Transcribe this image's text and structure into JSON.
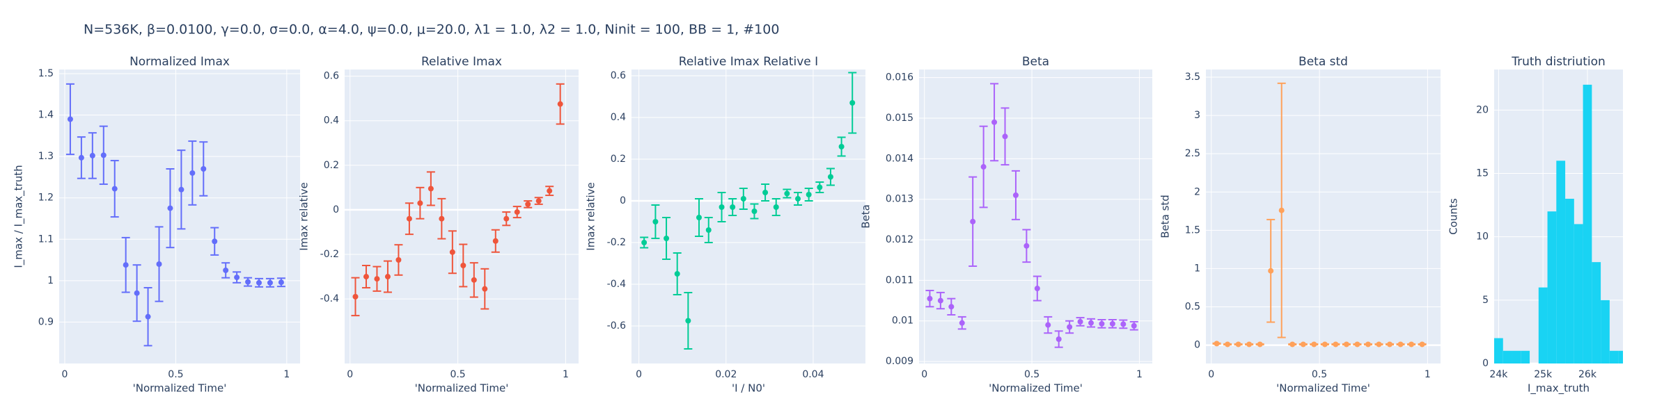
{
  "title": "N=536K, β=0.0100, γ=0.0, σ=0.0,  α=4.0, ψ=0.0, μ=20.0, λ1 = 1.0, λ2 = 1.0, Ninit = 100, BB = 1, #100",
  "chart_data": [
    {
      "type": "scatter",
      "title": "Normalized Imax",
      "x_label": "'Normalized Time'",
      "y_label": "I_max / I_max_truth",
      "color": "#636efa",
      "grid": true,
      "x": [
        0.025,
        0.075,
        0.125,
        0.175,
        0.225,
        0.275,
        0.325,
        0.375,
        0.425,
        0.475,
        0.525,
        0.575,
        0.625,
        0.675,
        0.725,
        0.775,
        0.825,
        0.875,
        0.925,
        0.975
      ],
      "values": [
        1.39,
        1.297,
        1.302,
        1.303,
        1.222,
        1.038,
        0.97,
        0.913,
        1.04,
        1.175,
        1.22,
        1.26,
        1.27,
        1.095,
        1.025,
        1.008,
        0.997,
        0.995,
        0.995,
        0.996
      ],
      "errors": [
        0.085,
        0.05,
        0.055,
        0.07,
        0.068,
        0.066,
        0.068,
        0.07,
        0.09,
        0.095,
        0.095,
        0.077,
        0.065,
        0.033,
        0.018,
        0.013,
        0.01,
        0.01,
        0.01,
        0.01
      ],
      "xlim": [
        -0.025,
        1.06
      ],
      "ylim": [
        0.8,
        1.51
      ],
      "xticks": [
        0,
        0.5,
        1
      ],
      "yticks": [
        0.9,
        1,
        1.1,
        1.2,
        1.3,
        1.4,
        1.5
      ]
    },
    {
      "type": "scatter",
      "title": "Relative Imax",
      "x_label": "'Normalized Time'",
      "y_label": "Imax relative",
      "color": "#EF553B",
      "grid": true,
      "x": [
        0.025,
        0.075,
        0.125,
        0.175,
        0.225,
        0.275,
        0.325,
        0.375,
        0.425,
        0.475,
        0.525,
        0.575,
        0.625,
        0.675,
        0.725,
        0.775,
        0.825,
        0.875,
        0.925,
        0.975
      ],
      "values": [
        -0.39,
        -0.3,
        -0.31,
        -0.3,
        -0.225,
        -0.04,
        0.03,
        0.095,
        -0.04,
        -0.19,
        -0.25,
        -0.315,
        -0.355,
        -0.14,
        -0.04,
        -0.01,
        0.025,
        0.04,
        0.085,
        0.475
      ],
      "errors": [
        0.085,
        0.05,
        0.055,
        0.07,
        0.068,
        0.07,
        0.07,
        0.075,
        0.09,
        0.095,
        0.095,
        0.077,
        0.09,
        0.05,
        0.03,
        0.025,
        0.015,
        0.015,
        0.02,
        0.09
      ],
      "xlim": [
        -0.025,
        1.06
      ],
      "ylim": [
        -0.69,
        0.63
      ],
      "xticks": [
        0,
        0.5,
        1
      ],
      "yticks": [
        -0.4,
        -0.2,
        0,
        0.2,
        0.4,
        0.6
      ]
    },
    {
      "type": "scatter",
      "title": "Relative Imax Relative I",
      "x_label": "'I / N0'",
      "y_label": "Imax relative",
      "color": "#00cc96",
      "grid": true,
      "x": [
        0.0012,
        0.0038,
        0.0063,
        0.0088,
        0.0113,
        0.0138,
        0.016,
        0.019,
        0.0215,
        0.024,
        0.0265,
        0.029,
        0.0315,
        0.034,
        0.0365,
        0.039,
        0.0415,
        0.044,
        0.0465,
        0.049
      ],
      "values": [
        -0.2,
        -0.1,
        -0.18,
        -0.35,
        -0.575,
        -0.08,
        -0.14,
        -0.03,
        -0.03,
        0.01,
        -0.05,
        0.04,
        -0.03,
        0.035,
        0.01,
        0.03,
        0.065,
        0.115,
        0.26,
        0.47
      ],
      "errors": [
        0.025,
        0.08,
        0.1,
        0.1,
        0.135,
        0.09,
        0.06,
        0.07,
        0.04,
        0.05,
        0.035,
        0.04,
        0.04,
        0.02,
        0.03,
        0.03,
        0.025,
        0.04,
        0.045,
        0.145
      ],
      "xlim": [
        -0.0017,
        0.052
      ],
      "ylim": [
        -0.78,
        0.63
      ],
      "xticks": [
        0,
        0.02,
        0.04
      ],
      "yticks": [
        -0.6,
        -0.4,
        -0.2,
        0,
        0.2,
        0.4,
        0.6
      ]
    },
    {
      "type": "scatter",
      "title": "Beta",
      "x_label": "'Normalized Time'",
      "y_label": "Beta",
      "color": "#ab63fa",
      "grid": true,
      "x": [
        0.025,
        0.075,
        0.125,
        0.175,
        0.225,
        0.275,
        0.325,
        0.375,
        0.425,
        0.475,
        0.525,
        0.575,
        0.625,
        0.675,
        0.725,
        0.775,
        0.825,
        0.875,
        0.925,
        0.975
      ],
      "values": [
        0.01055,
        0.0105,
        0.01035,
        0.00995,
        0.01245,
        0.0138,
        0.0149,
        0.01455,
        0.0131,
        0.01185,
        0.0108,
        0.0099,
        0.00955,
        0.00985,
        0.00998,
        0.00995,
        0.00993,
        0.00993,
        0.00992,
        0.00988
      ],
      "errors": [
        0.0002,
        0.0002,
        0.0002,
        0.00015,
        0.0011,
        0.001,
        0.00095,
        0.0007,
        0.0006,
        0.0004,
        0.0003,
        0.0002,
        0.0002,
        0.00015,
        0.0001,
        0.0001,
        0.0001,
        0.0001,
        0.0001,
        0.0001
      ],
      "xlim": [
        -0.025,
        1.06
      ],
      "ylim": [
        0.00895,
        0.0162
      ],
      "xticks": [
        0,
        0.5,
        1
      ],
      "yticks": [
        0.009,
        0.01,
        0.011,
        0.012,
        0.013,
        0.014,
        0.015,
        0.016
      ]
    },
    {
      "type": "scatter",
      "title": "Beta std",
      "x_label": "'Normalized Time'",
      "y_label": "Beta std",
      "color": "#FFA15A",
      "grid": true,
      "x": [
        0.025,
        0.075,
        0.125,
        0.175,
        0.225,
        0.275,
        0.325,
        0.375,
        0.425,
        0.475,
        0.525,
        0.575,
        0.625,
        0.675,
        0.725,
        0.775,
        0.825,
        0.875,
        0.925,
        0.975
      ],
      "values": [
        0.02,
        0.01,
        0.01,
        0.01,
        0.01,
        0.97,
        1.76,
        0.01,
        0.01,
        0.01,
        0.01,
        0.01,
        0.01,
        0.01,
        0.01,
        0.01,
        0.01,
        0.01,
        0.01,
        0.01
      ],
      "errors": [
        0.005,
        0.005,
        0.005,
        0.005,
        0.005,
        0.67,
        1.66,
        0.005,
        0.005,
        0.005,
        0.005,
        0.005,
        0.005,
        0.005,
        0.005,
        0.005,
        0.005,
        0.005,
        0.005,
        0.005
      ],
      "xlim": [
        -0.025,
        1.06
      ],
      "ylim": [
        -0.24,
        3.6
      ],
      "xticks": [
        0,
        0.5,
        1
      ],
      "yticks": [
        0,
        0.5,
        1,
        1.5,
        2,
        2.5,
        3,
        3.5
      ]
    },
    {
      "type": "histogram",
      "title": "Truth distriution",
      "x_label": "I_max_truth",
      "y_label": "Counts",
      "color": "#19d3f3",
      "grid": true,
      "bins": [
        23900,
        24100,
        24300,
        24500,
        24700,
        24900,
        25100,
        25300,
        25500,
        25700,
        25900,
        26100,
        26300,
        26500,
        26700,
        26900
      ],
      "counts": [
        2,
        1,
        1,
        1,
        0,
        6,
        12,
        16,
        13,
        11,
        22,
        8,
        5,
        1,
        1
      ],
      "xlim": [
        23900,
        26800
      ],
      "ylim": [
        0,
        23.2
      ],
      "xticks": [
        {
          "value": 24000,
          "label": "24k"
        },
        {
          "value": 25000,
          "label": "25k"
        },
        {
          "value": 26000,
          "label": "26k"
        }
      ],
      "yticks": [
        0,
        5,
        10,
        15,
        20
      ]
    }
  ]
}
